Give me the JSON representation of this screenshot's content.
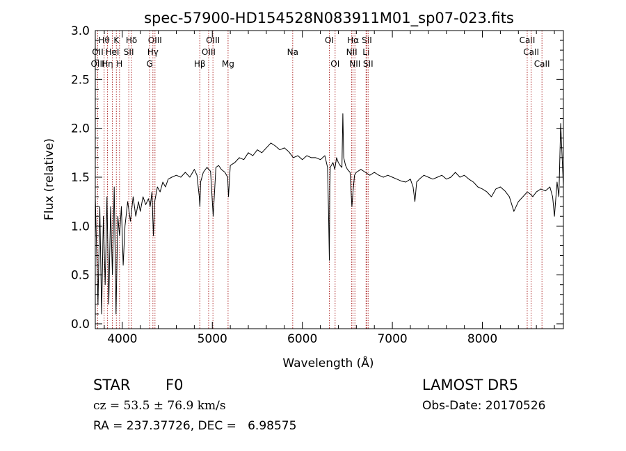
{
  "chart_data": {
    "type": "line",
    "title": "spec-57900-HD154528N083911M01_sp07-023.fits",
    "xlabel": "Wavelength (Å)",
    "ylabel": "Flux (relative)",
    "xlim": [
      3700,
      8900
    ],
    "ylim": [
      -0.05,
      3.0
    ],
    "xticks": [
      4000,
      5000,
      6000,
      7000,
      8000
    ],
    "xtick_labels": [
      "4000",
      "5000",
      "6000",
      "7000",
      "8000"
    ],
    "yticks": [
      0.0,
      0.5,
      1.0,
      1.5,
      2.0,
      2.5,
      3.0
    ],
    "ytick_labels": [
      "0.0",
      "0.5",
      "1.0",
      "1.5",
      "2.0",
      "2.5",
      "3.0"
    ],
    "line_color": "#000000",
    "marker_color": "#b03030",
    "spectral_lines": [
      {
        "label": "Hθ",
        "x": 3798,
        "row": 0
      },
      {
        "label": "OII",
        "x": 3727,
        "row": 1
      },
      {
        "label": "OIII",
        "x": 3727,
        "row": 2
      },
      {
        "label": "Hη",
        "x": 3835,
        "row": 2
      },
      {
        "label": "HeI",
        "x": 3889,
        "row": 1
      },
      {
        "label": "K",
        "x": 3934,
        "row": 0
      },
      {
        "label": "H",
        "x": 3969,
        "row": 2
      },
      {
        "label": "Hδ",
        "x": 4102,
        "row": 0
      },
      {
        "label": "SII",
        "x": 4072,
        "row": 1
      },
      {
        "label": "OIII",
        "x": 4363,
        "row": 0
      },
      {
        "label": "Hγ",
        "x": 4340,
        "row": 1
      },
      {
        "label": "G",
        "x": 4304,
        "row": 2
      },
      {
        "label": "Hβ",
        "x": 4861,
        "row": 2
      },
      {
        "label": "OIII",
        "x": 5007,
        "row": 0
      },
      {
        "label": "OIII",
        "x": 4959,
        "row": 1
      },
      {
        "label": "Mg",
        "x": 5175,
        "row": 2
      },
      {
        "label": "Na",
        "x": 5893,
        "row": 1
      },
      {
        "label": "OI",
        "x": 6300,
        "row": 0
      },
      {
        "label": "OI",
        "x": 6364,
        "row": 2
      },
      {
        "label": "Hα",
        "x": 6563,
        "row": 0
      },
      {
        "label": "NII",
        "x": 6548,
        "row": 1
      },
      {
        "label": "NII",
        "x": 6584,
        "row": 2
      },
      {
        "label": "SII",
        "x": 6717,
        "row": 0
      },
      {
        "label": "Li",
        "x": 6708,
        "row": 1
      },
      {
        "label": "SII",
        "x": 6731,
        "row": 2
      },
      {
        "label": "CaII",
        "x": 8498,
        "row": 0
      },
      {
        "label": "CaII",
        "x": 8542,
        "row": 1
      },
      {
        "label": "CaII",
        "x": 8662,
        "row": 2
      }
    ],
    "series": [
      {
        "x": [
          3700,
          3730,
          3750,
          3770,
          3790,
          3810,
          3830,
          3850,
          3870,
          3890,
          3910,
          3930,
          3950,
          3970,
          3990,
          4010,
          4030,
          4060,
          4090,
          4120,
          4150,
          4180,
          4200,
          4230,
          4260,
          4290,
          4310,
          4330,
          4345,
          4360,
          4390,
          4420,
          4450,
          4480,
          4510,
          4550,
          4600,
          4650,
          4700,
          4750,
          4800,
          4830,
          4855,
          4862,
          4870,
          4900,
          4940,
          4980,
          5010,
          5040,
          5070,
          5100,
          5140,
          5170,
          5180,
          5200,
          5250,
          5300,
          5350,
          5400,
          5450,
          5500,
          5550,
          5600,
          5650,
          5700,
          5750,
          5800,
          5850,
          5900,
          5950,
          6000,
          6050,
          6100,
          6150,
          6200,
          6250,
          6280,
          6290,
          6300,
          6305,
          6310,
          6340,
          6360,
          6380,
          6400,
          6420,
          6440,
          6450,
          6460,
          6480,
          6500,
          6530,
          6550,
          6563,
          6580,
          6600,
          6650,
          6700,
          6750,
          6800,
          6850,
          6900,
          6950,
          7000,
          7050,
          7100,
          7150,
          7200,
          7230,
          7250,
          7270,
          7300,
          7350,
          7400,
          7450,
          7500,
          7550,
          7600,
          7650,
          7700,
          7750,
          7800,
          7850,
          7900,
          7950,
          8000,
          8050,
          8100,
          8150,
          8200,
          8250,
          8300,
          8350,
          8400,
          8450,
          8500,
          8542,
          8560,
          8600,
          8650,
          8700,
          8750,
          8780,
          8800,
          8830,
          8850,
          8870,
          8900
        ],
        "y": [
          1.3,
          0.2,
          1.2,
          0.1,
          1.1,
          0.4,
          1.3,
          0.2,
          1.2,
          0.5,
          1.4,
          0.1,
          1.1,
          0.9,
          1.2,
          0.6,
          1.0,
          1.25,
          1.05,
          1.3,
          1.1,
          1.25,
          1.15,
          1.3,
          1.22,
          1.28,
          1.2,
          1.35,
          0.9,
          1.25,
          1.4,
          1.35,
          1.45,
          1.4,
          1.48,
          1.5,
          1.52,
          1.5,
          1.55,
          1.5,
          1.58,
          1.52,
          1.3,
          1.2,
          1.45,
          1.55,
          1.6,
          1.56,
          1.1,
          1.6,
          1.62,
          1.58,
          1.55,
          1.5,
          1.3,
          1.62,
          1.65,
          1.7,
          1.68,
          1.75,
          1.72,
          1.78,
          1.75,
          1.8,
          1.85,
          1.82,
          1.78,
          1.8,
          1.76,
          1.7,
          1.72,
          1.68,
          1.72,
          1.7,
          1.7,
          1.68,
          1.72,
          1.6,
          1.2,
          0.65,
          1.4,
          1.6,
          1.65,
          1.58,
          1.7,
          1.65,
          1.62,
          1.6,
          2.15,
          1.7,
          1.62,
          1.58,
          1.55,
          1.2,
          1.35,
          1.52,
          1.55,
          1.58,
          1.55,
          1.52,
          1.55,
          1.52,
          1.5,
          1.52,
          1.5,
          1.48,
          1.46,
          1.45,
          1.48,
          1.4,
          1.25,
          1.45,
          1.48,
          1.52,
          1.5,
          1.48,
          1.5,
          1.52,
          1.48,
          1.5,
          1.55,
          1.5,
          1.52,
          1.48,
          1.45,
          1.4,
          1.38,
          1.35,
          1.3,
          1.38,
          1.4,
          1.36,
          1.3,
          1.15,
          1.25,
          1.3,
          1.35,
          1.32,
          1.3,
          1.35,
          1.38,
          1.36,
          1.4,
          1.3,
          1.1,
          1.45,
          1.3,
          2.05,
          1.4
        ]
      }
    ]
  },
  "info": {
    "object_class": "STAR",
    "subclass": "F0",
    "cz": "cz = 53.5 ± 76.9 km/s",
    "coords": "RA = 237.37726, DEC =   6.98575",
    "survey": "LAMOST DR5",
    "obs_date": "Obs-Date: 20170526"
  }
}
